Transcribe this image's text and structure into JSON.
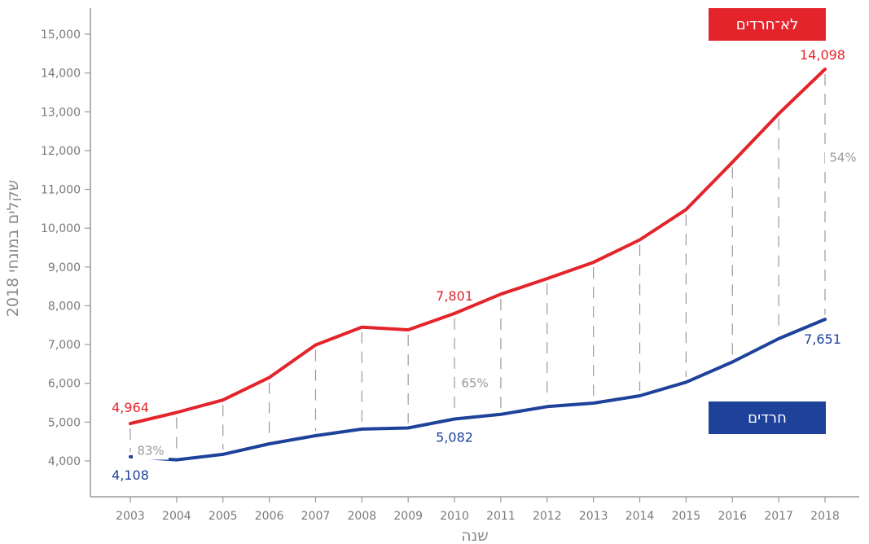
{
  "chart_data": {
    "type": "line",
    "x": [
      2003,
      2004,
      2005,
      2006,
      2007,
      2008,
      2009,
      2010,
      2011,
      2012,
      2013,
      2014,
      2015,
      2016,
      2017,
      2018
    ],
    "x_tick_labels": [
      "2003",
      "2004",
      "2005",
      "2006",
      "2007",
      "2008",
      "2009",
      "2010",
      "2011",
      "2012",
      "2013",
      "2014",
      "2015",
      "2016",
      "2017",
      "2018"
    ],
    "y_tick_values": [
      4000,
      5000,
      6000,
      7000,
      8000,
      9000,
      10000,
      11000,
      12000,
      13000,
      14000,
      15000
    ],
    "y_tick_labels": [
      "4,000",
      "5,000",
      "6,000",
      "7,000",
      "8,000",
      "9,000",
      "10,000",
      "11,000",
      "12,000",
      "13,000",
      "14,000",
      "15,000"
    ],
    "ylim": [
      3000,
      15600
    ],
    "xlabel": "שנה",
    "ylabel": "שקלים במונחי 2018",
    "grid": false,
    "series": [
      {
        "name": "לא־חרדים",
        "color": "#e3242b",
        "values": [
          4964,
          5250,
          5570,
          6150,
          6990,
          7450,
          7380,
          7801,
          8300,
          8700,
          9120,
          9700,
          10480,
          11700,
          12950,
          14098
        ]
      },
      {
        "name": "חרדים",
        "color": "#1e429a",
        "values": [
          4108,
          4030,
          4170,
          4440,
          4650,
          4820,
          4850,
          5082,
          5200,
          5400,
          5490,
          5680,
          6030,
          6550,
          7150,
          7651
        ]
      }
    ],
    "data_labels": [
      {
        "series": 0,
        "x": 2003,
        "text": "4,964"
      },
      {
        "series": 0,
        "x": 2010,
        "text": "7,801"
      },
      {
        "series": 0,
        "x": 2018,
        "text": "14,098"
      },
      {
        "series": 1,
        "x": 2003,
        "text": "4,108"
      },
      {
        "series": 1,
        "x": 2010,
        "text": "5,082"
      },
      {
        "series": 1,
        "x": 2018,
        "text": "7,651"
      }
    ],
    "gap_annotations": [
      {
        "x": 2003,
        "text": "83%"
      },
      {
        "x": 2010,
        "text": "65%"
      },
      {
        "x": 2018,
        "text": "54%"
      }
    ],
    "legend_placement": "labels beside lines (top-right and bottom-right)"
  }
}
